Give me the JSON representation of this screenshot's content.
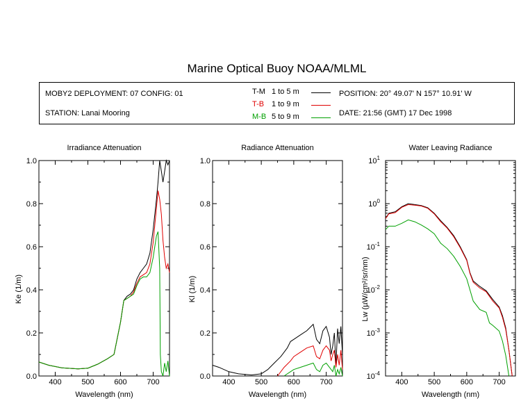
{
  "title": "Marine Optical Buoy NOAA/MLML",
  "info": {
    "deployment": "MOBY2 DEPLOYMENT: 07 CONFIG: 01",
    "station": "STATION: Lanai Mooring",
    "position": "POSITION: 20° 49.07' N   157° 10.91' W",
    "date": "DATE: 21:56 (GMT) 17 Dec 1998"
  },
  "legend": [
    {
      "code": "T-M",
      "range": "1 to 5  m",
      "color": "#000000"
    },
    {
      "code": "T-B",
      "range": "1 to 9  m",
      "color": "#e00000"
    },
    {
      "code": "M-B",
      "range": "5 to 9  m",
      "color": "#00a000"
    }
  ],
  "chart_data": [
    {
      "type": "line",
      "title": "Irradiance Attenuation",
      "xlabel": "Wavelength (nm)",
      "ylabel": "Ke  (1/m)",
      "xlim": [
        350,
        750
      ],
      "ylim": [
        0,
        1.0
      ],
      "xticks": [
        400,
        500,
        600,
        700
      ],
      "yticks": [
        0.0,
        0.2,
        0.4,
        0.6,
        0.8,
        1.0
      ],
      "ytick_labels": [
        "0.0",
        "0.2",
        "0.4",
        "0.6",
        "0.8",
        "1.0"
      ],
      "series": [
        {
          "name": "T-M",
          "color": "#000000",
          "x": [
            350,
            380,
            420,
            470,
            500,
            530,
            560,
            580,
            600,
            610,
            620,
            630,
            640,
            650,
            660,
            670,
            680,
            690,
            700,
            710,
            715,
            720,
            725,
            730,
            735,
            740,
            745,
            750
          ],
          "y": [
            0.065,
            0.05,
            0.038,
            0.033,
            0.036,
            0.055,
            0.08,
            0.1,
            0.25,
            0.35,
            0.37,
            0.38,
            0.4,
            0.45,
            0.48,
            0.5,
            0.52,
            0.57,
            0.68,
            0.82,
            0.9,
            1.0,
            0.95,
            0.9,
            0.95,
            1.0,
            0.98,
            1.0
          ]
        },
        {
          "name": "T-B",
          "color": "#e00000",
          "x": [
            350,
            380,
            420,
            470,
            500,
            530,
            560,
            580,
            600,
            610,
            620,
            630,
            640,
            650,
            660,
            670,
            680,
            690,
            700,
            710,
            715,
            720,
            725,
            730,
            735,
            740,
            745,
            750
          ],
          "y": [
            0.065,
            0.05,
            0.038,
            0.033,
            0.036,
            0.055,
            0.08,
            0.1,
            0.25,
            0.35,
            0.36,
            0.37,
            0.39,
            0.43,
            0.46,
            0.47,
            0.48,
            0.52,
            0.62,
            0.78,
            0.86,
            0.82,
            0.75,
            0.63,
            0.55,
            0.5,
            0.52,
            0.48
          ]
        },
        {
          "name": "M-B",
          "color": "#00a000",
          "x": [
            350,
            380,
            420,
            470,
            500,
            530,
            560,
            580,
            600,
            610,
            620,
            630,
            640,
            650,
            660,
            670,
            680,
            690,
            700,
            705,
            710,
            715,
            720,
            722,
            725,
            730,
            735,
            740,
            745,
            750
          ],
          "y": [
            0.065,
            0.05,
            0.038,
            0.033,
            0.036,
            0.055,
            0.08,
            0.1,
            0.25,
            0.35,
            0.36,
            0.37,
            0.38,
            0.42,
            0.45,
            0.46,
            0.46,
            0.48,
            0.55,
            0.6,
            0.65,
            0.67,
            0.5,
            0.1,
            0.02,
            0.0,
            0.06,
            0.02,
            0.07,
            0.0
          ]
        }
      ]
    },
    {
      "type": "line",
      "title": "Radiance Attenuation",
      "xlabel": "Wavelength (nm)",
      "ylabel": "Kl  (1/m)",
      "xlim": [
        350,
        750
      ],
      "ylim": [
        0,
        1.0
      ],
      "xticks": [
        400,
        500,
        600,
        700
      ],
      "yticks": [
        0.0,
        0.2,
        0.4,
        0.6,
        0.8,
        1.0
      ],
      "ytick_labels": [
        "0.0",
        "0.2",
        "0.4",
        "0.6",
        "0.8",
        "1.0"
      ],
      "series": [
        {
          "name": "T-M",
          "color": "#000000",
          "x": [
            350,
            370,
            400,
            430,
            470,
            500,
            520,
            540,
            560,
            580,
            590,
            600,
            620,
            640,
            660,
            670,
            680,
            690,
            700,
            710,
            715,
            720,
            725,
            730,
            735,
            740,
            745,
            750
          ],
          "y": [
            0.05,
            0.04,
            0.02,
            0.01,
            0.005,
            0.01,
            0.03,
            0.06,
            0.09,
            0.13,
            0.16,
            0.17,
            0.19,
            0.21,
            0.24,
            0.17,
            0.15,
            0.21,
            0.23,
            0.18,
            0.1,
            0.14,
            0.2,
            0.05,
            0.22,
            0.15,
            0.23,
            0.1
          ]
        },
        {
          "name": "T-B",
          "color": "#e00000",
          "x": [
            550,
            570,
            590,
            600,
            620,
            640,
            660,
            670,
            680,
            690,
            700,
            710,
            715,
            720,
            725,
            730,
            735,
            740,
            745,
            750
          ],
          "y": [
            0.0,
            0.04,
            0.07,
            0.09,
            0.11,
            0.13,
            0.14,
            0.09,
            0.08,
            0.12,
            0.14,
            0.12,
            0.07,
            0.1,
            0.12,
            0.04,
            0.1,
            0.05,
            0.12,
            0.03
          ]
        },
        {
          "name": "M-B",
          "color": "#00a000",
          "x": [
            570,
            590,
            600,
            620,
            640,
            660,
            670,
            680,
            690,
            700,
            710,
            720,
            725,
            730,
            735,
            740,
            745,
            750
          ],
          "y": [
            0.0,
            0.02,
            0.03,
            0.04,
            0.05,
            0.06,
            0.03,
            0.02,
            0.05,
            0.06,
            0.04,
            0.02,
            0.05,
            0.0,
            0.03,
            0.01,
            0.04,
            0.0
          ]
        }
      ]
    },
    {
      "type": "line",
      "title": "Water Leaving Radiance",
      "xlabel": "Wavelength (nm)",
      "ylabel": "Lw  (µW/cm²/sr/nm)",
      "xlim": [
        350,
        750
      ],
      "ylim": [
        0.0001,
        10
      ],
      "yscale": "log",
      "xticks": [
        400,
        500,
        600,
        700
      ],
      "yticks": [
        0.0001,
        0.001,
        0.01,
        0.1,
        1,
        10
      ],
      "ytick_labels": [
        [
          "10",
          "-4"
        ],
        [
          "10",
          "-3"
        ],
        [
          "10",
          "-2"
        ],
        [
          "10",
          "-1"
        ],
        [
          "10",
          "0"
        ],
        [
          "10",
          "1"
        ]
      ],
      "series": [
        {
          "name": "T-M",
          "color": "#000000",
          "x": [
            350,
            360,
            380,
            400,
            420,
            440,
            460,
            480,
            500,
            520,
            540,
            560,
            580,
            600,
            610,
            620,
            640,
            660,
            680,
            700,
            710,
            720,
            730,
            740
          ],
          "y": [
            0.45,
            0.6,
            0.65,
            0.85,
            1.0,
            0.95,
            0.9,
            0.8,
            0.6,
            0.4,
            0.28,
            0.18,
            0.1,
            0.05,
            0.025,
            0.016,
            0.012,
            0.0095,
            0.006,
            0.004,
            0.0025,
            0.0013,
            0.0004,
            0.0001
          ]
        },
        {
          "name": "T-B",
          "color": "#e00000",
          "x": [
            350,
            360,
            380,
            400,
            420,
            440,
            460,
            480,
            500,
            520,
            540,
            560,
            580,
            600,
            610,
            620,
            640,
            660,
            680,
            700,
            710,
            720,
            730,
            740
          ],
          "y": [
            0.45,
            0.58,
            0.62,
            0.82,
            0.95,
            0.92,
            0.88,
            0.78,
            0.58,
            0.38,
            0.27,
            0.17,
            0.095,
            0.048,
            0.024,
            0.015,
            0.011,
            0.009,
            0.0055,
            0.0038,
            0.0023,
            0.0012,
            0.0004,
            0.0001
          ]
        },
        {
          "name": "M-B",
          "color": "#00a000",
          "x": [
            350,
            360,
            380,
            400,
            420,
            440,
            460,
            480,
            500,
            520,
            540,
            560,
            580,
            600,
            620,
            640,
            660,
            670,
            680,
            700,
            710,
            720,
            730
          ],
          "y": [
            0.25,
            0.3,
            0.3,
            0.35,
            0.42,
            0.38,
            0.32,
            0.26,
            0.2,
            0.12,
            0.09,
            0.06,
            0.035,
            0.018,
            0.0055,
            0.0035,
            0.003,
            0.0017,
            0.0015,
            0.0011,
            0.00065,
            0.0003,
            0.0001
          ]
        }
      ]
    }
  ]
}
